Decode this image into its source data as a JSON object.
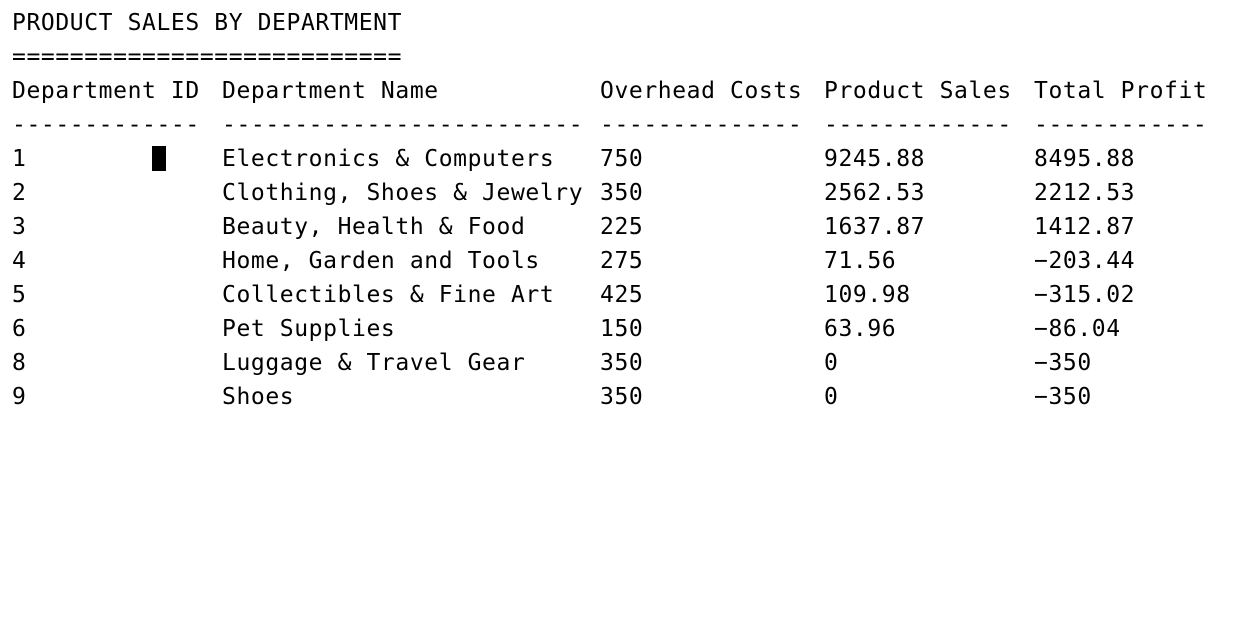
{
  "report": {
    "title": "PRODUCT SALES BY DEPARTMENT",
    "title_underline": "==========================="
  },
  "table": {
    "headers": [
      "Department ID",
      "Department Name",
      "Overhead Costs",
      "Product Sales",
      "Total Profit"
    ],
    "separators": [
      "-------------",
      "-------------------------",
      "--------------",
      "-------------",
      "------------"
    ],
    "rows": [
      [
        "1",
        "Electronics & Computers",
        "750",
        "9245.88",
        "8495.88"
      ],
      [
        "2",
        "Clothing, Shoes & Jewelry",
        "350",
        "2562.53",
        "2212.53"
      ],
      [
        "3",
        "Beauty, Health & Food",
        "225",
        "1637.87",
        "1412.87"
      ],
      [
        "4",
        "Home, Garden and Tools",
        "275",
        "71.56",
        "−203.44"
      ],
      [
        "5",
        "Collectibles & Fine Art",
        "425",
        "109.98",
        "−315.02"
      ],
      [
        "6",
        "Pet Supplies",
        "150",
        "63.96",
        "−86.04"
      ],
      [
        "8",
        "Luggage & Travel Gear",
        "350",
        "0",
        "−350"
      ],
      [
        "9",
        "Shoes",
        "350",
        "0",
        "−350"
      ]
    ]
  },
  "colors": {
    "background": "#ffffff",
    "text": "#000000",
    "cursor": "#000000"
  }
}
